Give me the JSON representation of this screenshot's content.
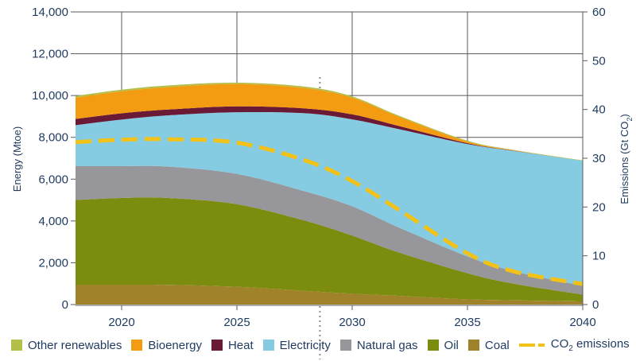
{
  "chart_data": {
    "type": "area",
    "stacked": true,
    "title": "",
    "xlabel": "",
    "ylabel": "Energy (Mtoe)",
    "y2label": "Emissions (Gt CO2)",
    "ylim": [
      0,
      14000
    ],
    "y2lim": [
      0,
      60
    ],
    "xlim": [
      2018,
      2040
    ],
    "grid": true,
    "legend_position": "bottom",
    "x_ticks": [
      2020,
      2025,
      2030,
      2035,
      2040
    ],
    "x_tick_labels": [
      "2020",
      "2025",
      "2030",
      "2035",
      "2040"
    ],
    "y_ticks": [
      0,
      2000,
      4000,
      6000,
      8000,
      10000,
      12000,
      14000
    ],
    "y_tick_labels": [
      "0",
      "2,000",
      "4,000",
      "6,000",
      "8,000",
      "10,000",
      "12,000",
      "14,000"
    ],
    "y2_ticks": [
      0,
      10,
      20,
      30,
      40,
      50,
      60
    ],
    "y2_tick_labels": [
      "0",
      "10",
      "20",
      "30",
      "40",
      "50",
      "60"
    ],
    "marker_year": 2028.6,
    "x": [
      2018,
      2020,
      2022,
      2025,
      2028,
      2030,
      2032,
      2035,
      2037,
      2040
    ],
    "series": [
      {
        "name": "Coal",
        "color": "#a0822a",
        "values": [
          950,
          950,
          940,
          850,
          650,
          520,
          420,
          250,
          200,
          150
        ]
      },
      {
        "name": "Oil",
        "color": "#7c8c0e",
        "values": [
          4050,
          4150,
          4160,
          3950,
          3350,
          2780,
          2080,
          1250,
          800,
          330
        ]
      },
      {
        "name": "Natural gas",
        "color": "#97969b",
        "values": [
          1620,
          1520,
          1500,
          1450,
          1400,
          1400,
          1200,
          800,
          600,
          420
        ]
      },
      {
        "name": "Electricity",
        "color": "#85cbe1",
        "values": [
          1960,
          2230,
          2450,
          2950,
          3750,
          4160,
          4700,
          5380,
          5750,
          5980
        ]
      },
      {
        "name": "Heat",
        "color": "#6b1a35",
        "values": [
          300,
          300,
          280,
          280,
          230,
          240,
          150,
          40,
          10,
          0
        ]
      },
      {
        "name": "Bioenergy",
        "color": "#f39c12",
        "values": [
          1020,
          1050,
          1070,
          1070,
          970,
          800,
          450,
          80,
          20,
          0
        ]
      },
      {
        "name": "Other renewables",
        "color": "#b4bf4a",
        "values": [
          80,
          80,
          80,
          70,
          70,
          60,
          50,
          40,
          20,
          20
        ]
      }
    ],
    "line_series": {
      "name": "CO2 emissions",
      "axis": "right",
      "color": "#f2c218",
      "style": "dashed",
      "values": [
        33.3,
        33.8,
        33.9,
        33.2,
        29.5,
        25.3,
        19.5,
        10.5,
        6.8,
        4.2
      ]
    }
  },
  "legend": [
    {
      "label": "Other renewables",
      "color": "#b4bf4a"
    },
    {
      "label": "Bioenergy",
      "color": "#f39c12"
    },
    {
      "label": "Heat",
      "color": "#6b1a35"
    },
    {
      "label": "Electricity",
      "color": "#85cbe1"
    },
    {
      "label": "Natural gas",
      "color": "#97969b"
    },
    {
      "label": "Oil",
      "color": "#7c8c0e"
    },
    {
      "label": "Coal",
      "color": "#a0822a"
    }
  ],
  "legend_line": {
    "prefix": "CO",
    "sub": "2",
    "suffix": " emissions"
  },
  "axis_titles": {
    "left": "Energy (Mtoe)",
    "right_prefix": "Emissions (Gt CO",
    "right_sub": "2",
    "right_suffix": ")"
  }
}
